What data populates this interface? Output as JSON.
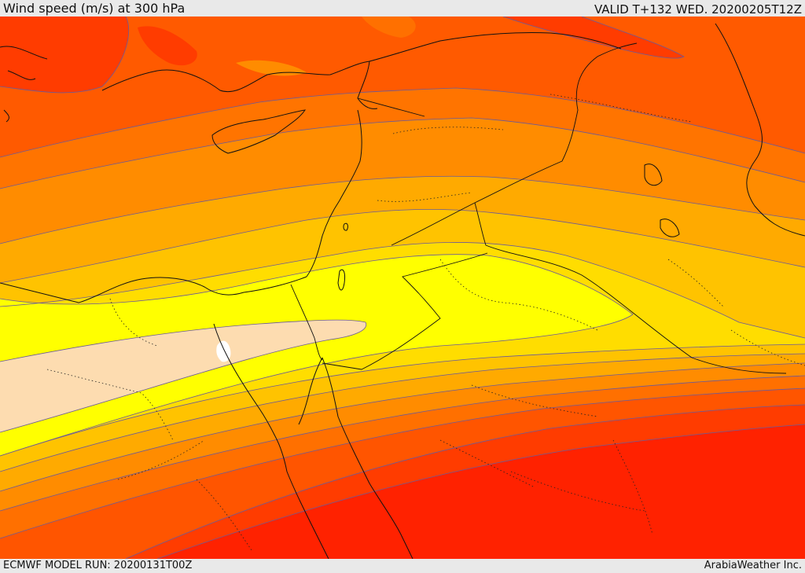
{
  "header": {
    "title": "Wind speed (m/s) at 300 hPa",
    "valid_time": "VALID T+132 WED. 20200205T12Z"
  },
  "footer": {
    "model_run": "ECMWF MODEL RUN: 20200131T00Z",
    "credit": "ArabiaWeather Inc."
  },
  "map": {
    "parameter": "wind-speed",
    "pressure_level_hpa": 300,
    "colors": {
      "strongest": "#ff2200",
      "very_strong": "#ff3c00",
      "strong": "#ff5500",
      "moderate_high": "#ff7000",
      "moderate": "#ff8c00",
      "medium": "#ffaa00",
      "medium_low": "#ffc300",
      "low": "#ffdd00",
      "lower": "#ffff00",
      "lowest": "#fddcb0",
      "coast_line": "#111111",
      "contour_line": "#6a5a9a"
    }
  }
}
